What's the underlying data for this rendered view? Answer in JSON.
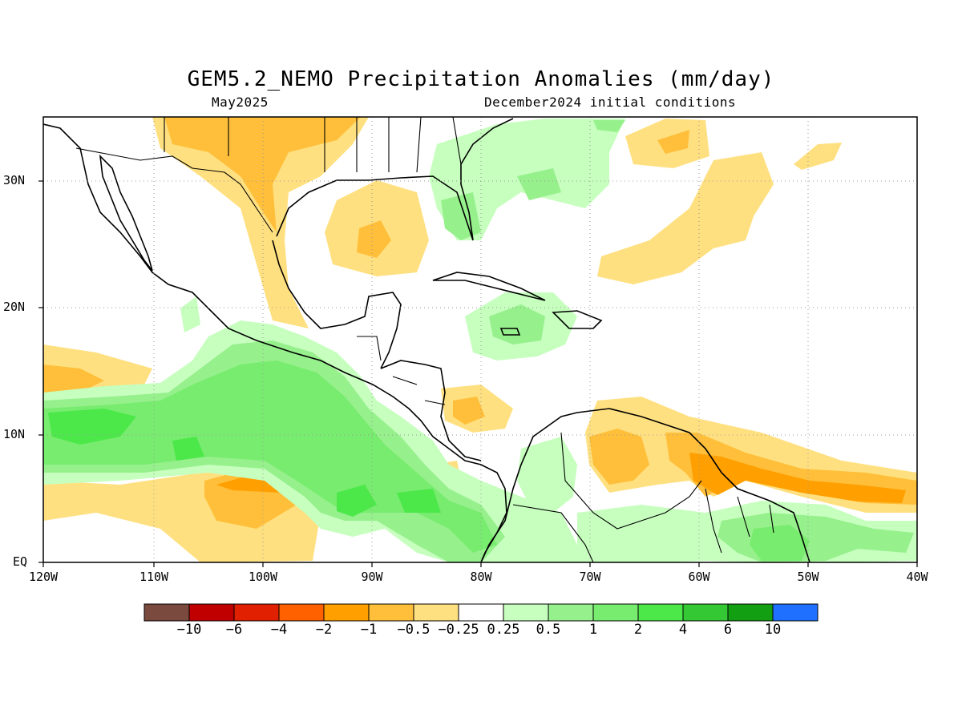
{
  "title": "GEM5.2_NEMO Precipitation Anomalies (mm/day)",
  "subtitle_left": "May2025",
  "subtitle_right": "December2024 initial conditions",
  "lat_labels": [
    "30N",
    "20N",
    "10N",
    "EQ"
  ],
  "lon_labels": [
    "120W",
    "110W",
    "100W",
    "90W",
    "80W",
    "70W",
    "60W",
    "50W",
    "40W"
  ],
  "colorbar": {
    "colors": [
      "#7a4a3e",
      "#c00000",
      "#e02000",
      "#ff6000",
      "#ff9f00",
      "#ffbf3a",
      "#ffe080",
      "#ffffff",
      "#c6ffbe",
      "#96f08c",
      "#78ec6e",
      "#4ce84a",
      "#34c834",
      "#12a012",
      "#2070ff"
    ],
    "labels": [
      "−10",
      "−6",
      "−4",
      "−2",
      "−1",
      "−0.5",
      "−0.25",
      "0.25",
      "0.5",
      "1",
      "2",
      "4",
      "6",
      "10"
    ]
  },
  "legend_palette": {
    "light_green": "#c6ffbe",
    "green": "#96f08c",
    "mid_green": "#78ec6e",
    "light_yellow": "#ffe080",
    "orange": "#ffbf3a",
    "dark_orange": "#ff9f00"
  }
}
